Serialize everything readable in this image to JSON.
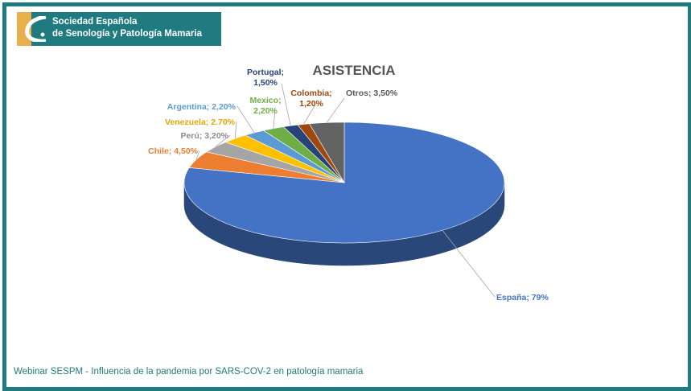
{
  "logo": {
    "line1": "Sociedad Española",
    "line2": "de Senología y Patología Mamaria"
  },
  "footer": "Webinar SESPM - Influencia de la pandemia por SARS-COV-2 en patología mamaria",
  "colors": {
    "frame": "#1f7b80",
    "logo_tab": "#e8b04a"
  },
  "chart_data": {
    "type": "pie",
    "style": "3d",
    "title": "ASISTENCIA",
    "slices": [
      {
        "name": "España",
        "value": 79,
        "label": "España; 79%",
        "color": "#4472c4",
        "label_color": "#4472c4"
      },
      {
        "name": "Chile",
        "value": 4.5,
        "label": "Chile; 4,50%",
        "color": "#ed7d31",
        "label_color": "#ed7d31"
      },
      {
        "name": "Perú",
        "value": 3.2,
        "label": "Perú; 3,20%",
        "color": "#a5a5a5",
        "label_color": "#8c8c8c"
      },
      {
        "name": "Venezuela",
        "value": 2.7,
        "label": "Venezuela; 2.70%",
        "color": "#ffc000",
        "label_color": "#e0a800"
      },
      {
        "name": "Argentina",
        "value": 2.2,
        "label": "Argentina; 2,20%",
        "color": "#5b9bd5",
        "label_color": "#5b9bd5"
      },
      {
        "name": "Mexico",
        "value": 2.2,
        "label_lines": [
          "Mexico;",
          "2,20%"
        ],
        "color": "#70ad47",
        "label_color": "#70ad47"
      },
      {
        "name": "Portugal",
        "value": 1.5,
        "label_lines": [
          "Portugal;",
          "1,50%"
        ],
        "color": "#264478",
        "label_color": "#264478"
      },
      {
        "name": "Colombia",
        "value": 1.2,
        "label_lines": [
          "Colombia;",
          "1,20%"
        ],
        "color": "#9e480e",
        "label_color": "#9e480e"
      },
      {
        "name": "Otros",
        "value": 3.5,
        "label": "Otros; 3,50%",
        "color": "#636363",
        "label_color": "#595959"
      }
    ]
  }
}
